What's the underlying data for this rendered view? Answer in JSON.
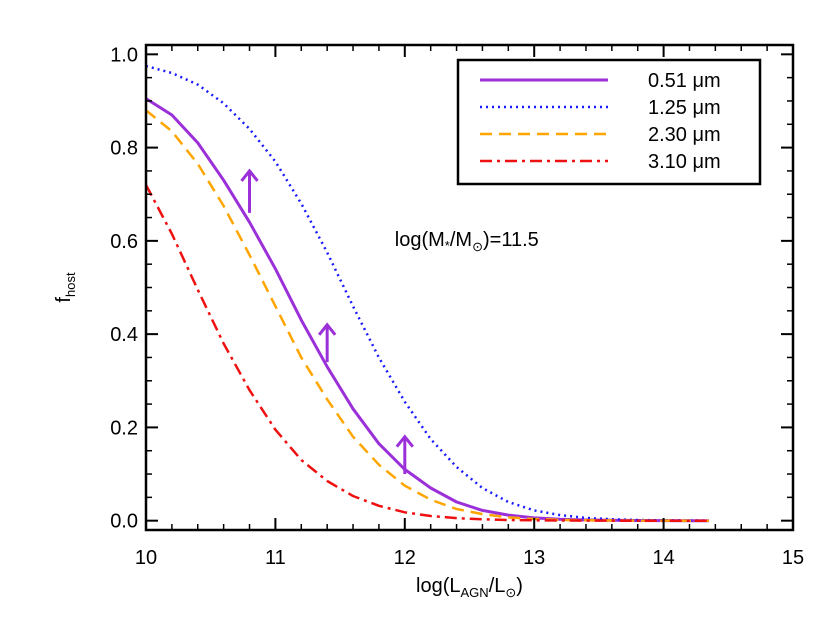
{
  "chart_data": {
    "type": "line",
    "title": "",
    "xlabel": {
      "main": "log(L",
      "sub": "AGN",
      "mid": "/L",
      "sun": "⊙",
      "end": ")"
    },
    "ylabel": {
      "main": "f",
      "sub": "host"
    },
    "xlim": [
      10,
      15
    ],
    "ylim": [
      -0.02,
      1.02
    ],
    "xticks": [
      10,
      11,
      12,
      13,
      14,
      15
    ],
    "xtick_labels": [
      "10",
      "11",
      "12",
      "13",
      "14",
      "15"
    ],
    "yticks": [
      0.0,
      0.2,
      0.4,
      0.6,
      0.8,
      1.0
    ],
    "ytick_labels": [
      "0.0",
      "0.2",
      "0.4",
      "0.6",
      "0.8",
      "1.0"
    ],
    "grid": false,
    "legend_position": "top-right",
    "series": [
      {
        "name": "0.51 μm",
        "color": "#9b30d9",
        "style": "solid",
        "x": [
          10.0,
          10.2,
          10.4,
          10.6,
          10.8,
          11.0,
          11.2,
          11.4,
          11.6,
          11.8,
          12.0,
          12.2,
          12.4,
          12.6,
          12.8,
          13.0,
          13.2,
          13.4,
          13.6,
          13.8,
          14.0,
          14.2,
          14.35
        ],
        "y": [
          0.905,
          0.87,
          0.81,
          0.73,
          0.64,
          0.54,
          0.43,
          0.33,
          0.24,
          0.165,
          0.11,
          0.07,
          0.04,
          0.022,
          0.012,
          0.006,
          0.003,
          0.0015,
          0.0007,
          0.0003,
          0.0001,
          0.0,
          0.0
        ]
      },
      {
        "name": "1.25 μm",
        "color": "#1a1aff",
        "style": "dotted",
        "x": [
          10.0,
          10.2,
          10.4,
          10.6,
          10.8,
          11.0,
          11.2,
          11.4,
          11.6,
          11.8,
          12.0,
          12.2,
          12.4,
          12.6,
          12.8,
          13.0,
          13.2,
          13.4,
          13.6,
          13.8,
          14.0,
          14.2,
          14.35
        ],
        "y": [
          0.975,
          0.96,
          0.935,
          0.895,
          0.84,
          0.77,
          0.68,
          0.575,
          0.46,
          0.35,
          0.255,
          0.175,
          0.115,
          0.07,
          0.04,
          0.022,
          0.012,
          0.006,
          0.003,
          0.0015,
          0.0007,
          0.0003,
          0.0001
        ]
      },
      {
        "name": "2.30 μm",
        "color": "#ffa500",
        "style": "dashed",
        "x": [
          10.0,
          10.2,
          10.4,
          10.6,
          10.8,
          11.0,
          11.2,
          11.4,
          11.6,
          11.8,
          12.0,
          12.2,
          12.4,
          12.6,
          12.8,
          13.0,
          13.2,
          13.4,
          13.6,
          13.8,
          14.0,
          14.2,
          14.35
        ],
        "y": [
          0.88,
          0.835,
          0.765,
          0.675,
          0.57,
          0.46,
          0.35,
          0.26,
          0.18,
          0.12,
          0.075,
          0.045,
          0.025,
          0.014,
          0.007,
          0.0035,
          0.0017,
          0.0008,
          0.0004,
          0.0002,
          0.0001,
          0.0,
          0.0
        ]
      },
      {
        "name": "3.10 μm",
        "color": "#ee1111",
        "style": "dashdot",
        "x": [
          10.0,
          10.2,
          10.4,
          10.6,
          10.8,
          11.0,
          11.2,
          11.4,
          11.6,
          11.8,
          12.0,
          12.2,
          12.4,
          12.6,
          12.8,
          13.0,
          13.2,
          13.4,
          13.6,
          13.8,
          14.0,
          14.2,
          14.35
        ],
        "y": [
          0.72,
          0.615,
          0.495,
          0.38,
          0.28,
          0.195,
          0.13,
          0.085,
          0.053,
          0.032,
          0.018,
          0.01,
          0.0055,
          0.003,
          0.0015,
          0.0007,
          0.0003,
          0.0001,
          0.0,
          0.0,
          0.0,
          0.0,
          0.0
        ]
      }
    ],
    "arrows": [
      {
        "x": 10.8,
        "y_start": 0.66,
        "y_end": 0.75,
        "color": "#9b30d9"
      },
      {
        "x": 11.4,
        "y_start": 0.34,
        "y_end": 0.42,
        "color": "#9b30d9"
      },
      {
        "x": 12.0,
        "y_start": 0.1,
        "y_end": 0.18,
        "color": "#9b30d9"
      }
    ],
    "annotation": {
      "prefix": "log(M",
      "star": "*",
      "mid": "/M",
      "sun": "⊙",
      "end": ")=11.5",
      "x": 12.85,
      "y": 0.6
    }
  }
}
